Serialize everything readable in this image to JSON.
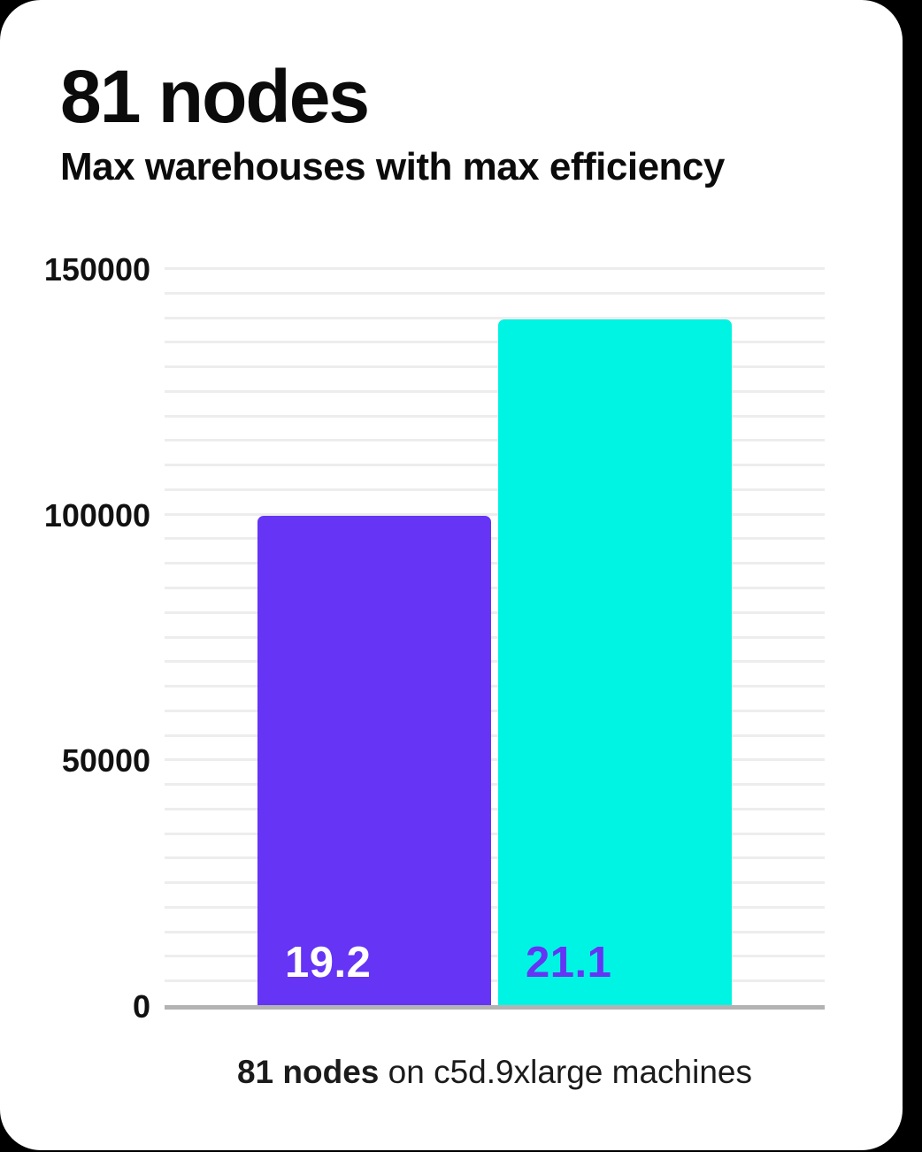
{
  "page": {
    "background_color": "#000000",
    "card_color": "#ffffff"
  },
  "header": {
    "title": "81 nodes",
    "subtitle": "Max warehouses with max efficiency"
  },
  "caption": {
    "bold": "81 nodes",
    "rest": " on c5d.9xlarge machines"
  },
  "chart_data": {
    "type": "bar",
    "title": "81 nodes",
    "subtitle": "Max warehouses with max efficiency",
    "categories": [
      "19.2",
      "21.1"
    ],
    "values": [
      100000,
      140000
    ],
    "bar_labels": [
      "19.2",
      "21.1"
    ],
    "bar_colors": [
      "#6534F4",
      "#00F4E3"
    ],
    "bar_label_colors": [
      "#FFFFFF",
      "#6534F4"
    ],
    "ylim": [
      0,
      150000
    ],
    "yticks": [
      0,
      50000,
      100000,
      150000
    ],
    "ytick_labels": [
      "0",
      "50000",
      "100000",
      "150000"
    ],
    "minor_gridline_step": 5000,
    "grid": true,
    "gridline_color": "#ededed",
    "axis_line_color": "#b3b3b3",
    "legend": "none",
    "xlabel": "",
    "ylabel": "",
    "caption": "81 nodes on c5d.9xlarge machines"
  }
}
